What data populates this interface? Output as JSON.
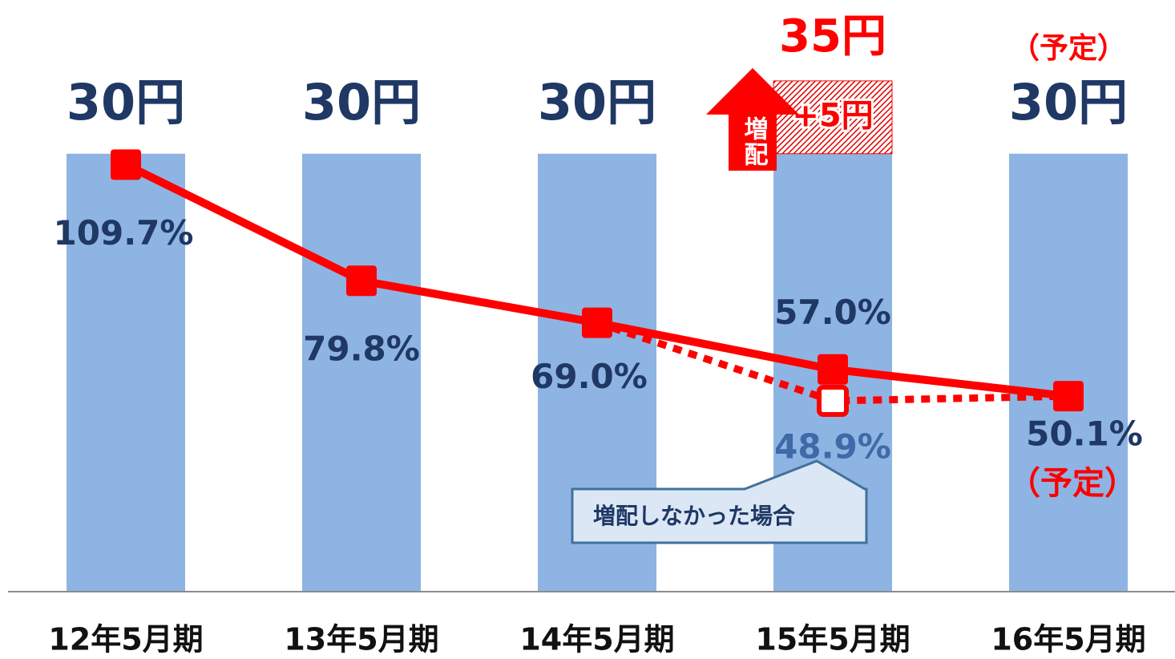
{
  "chart_data": {
    "type": "bar_line",
    "categories": [
      "12年5月期",
      "13年5月期",
      "14年5月期",
      "15年5月期",
      "16年5月期"
    ],
    "ylim": [
      0,
      40
    ],
    "y2lim": [
      0,
      150
    ],
    "series": [
      {
        "type": "bar",
        "color": "#8eb4e3",
        "values": [
          30,
          30,
          30,
          30,
          30
        ],
        "value_labels": [
          "30円",
          "30円",
          "30円",
          null,
          "30円"
        ]
      },
      {
        "type": "bar",
        "color": "#ff0000",
        "hatched": true,
        "values": [
          null,
          null,
          null,
          5,
          null
        ],
        "value_labels": [
          null,
          null,
          null,
          "+5円",
          null
        ]
      },
      {
        "type": "line",
        "axis": "y2",
        "color": "#ff0000",
        "values": [
          109.7,
          79.8,
          69.0,
          57.0,
          50.1
        ],
        "value_labels": [
          "109.7%",
          "79.8%",
          "69.0%",
          "57.0%",
          "50.1%"
        ]
      },
      {
        "type": "line",
        "axis": "y2",
        "color": "#ff0000",
        "dashed": true,
        "name": "増配しなかった場合",
        "values": [
          null,
          null,
          69.0,
          48.9,
          50.1
        ],
        "value_labels": [
          null,
          null,
          null,
          "48.9%",
          null
        ]
      }
    ],
    "increase_total_label": "35円",
    "increase_arrow_label": "増配",
    "forecast_label": "（予定）"
  }
}
